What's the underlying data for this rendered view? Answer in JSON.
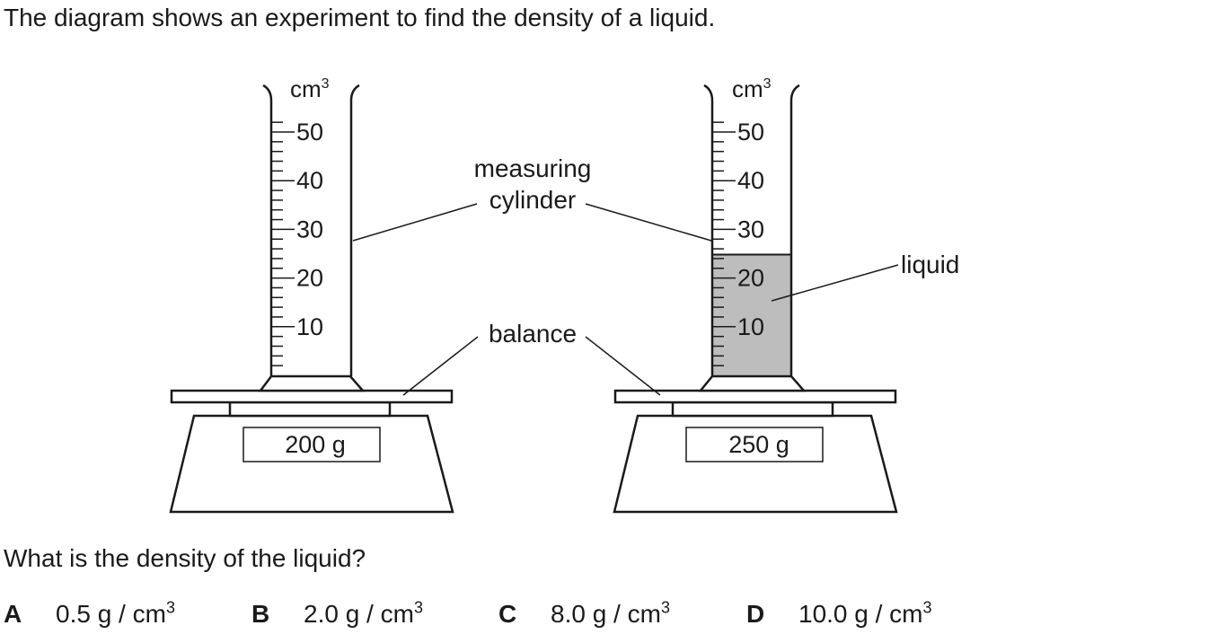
{
  "intro_text": "The diagram shows an experiment to find the density of a liquid.",
  "question_text": "What is the density of the liquid?",
  "diagram": {
    "scale_unit": "cm",
    "scale_unit_power": "3",
    "scale_ticks": [
      "50",
      "40",
      "30",
      "20",
      "10"
    ],
    "label_measuring": "measuring",
    "label_cylinder": "cylinder",
    "label_balance": "balance",
    "label_liquid": "liquid",
    "left_balance_reading": "200 g",
    "right_balance_reading": "250 g",
    "liquid_level_cm3": 25,
    "liquid_color": "#bdbdbd"
  },
  "options": [
    {
      "letter": "A",
      "value": "0.5 g / cm",
      "power": "3"
    },
    {
      "letter": "B",
      "value": "2.0 g / cm",
      "power": "3"
    },
    {
      "letter": "C",
      "value": "8.0 g / cm",
      "power": "3"
    },
    {
      "letter": "D",
      "value": "10.0 g / cm",
      "power": "3"
    }
  ]
}
